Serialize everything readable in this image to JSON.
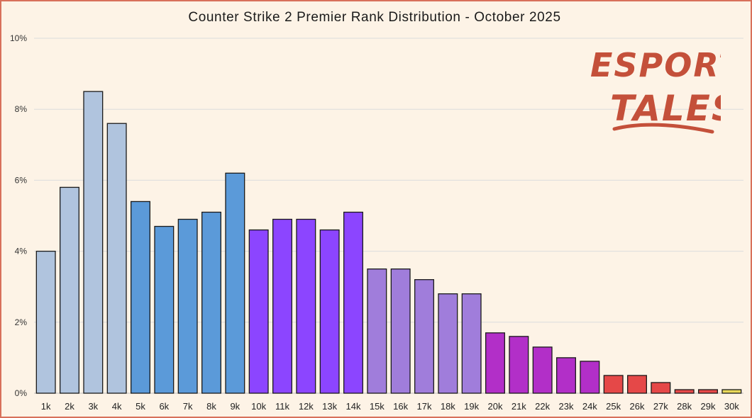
{
  "logo": {
    "line1": "ESPORTS",
    "line2": "TALES"
  },
  "chart_data": {
    "type": "bar",
    "title": "Counter Strike 2 Premier Rank Distribution - October 2025",
    "xlabel": "",
    "ylabel": "",
    "ylim": [
      0,
      10
    ],
    "y_ticks": [
      "0%",
      "2%",
      "4%",
      "6%",
      "8%",
      "10%"
    ],
    "y_tick_values": [
      0,
      2,
      4,
      6,
      8,
      10
    ],
    "grid": true,
    "categories": [
      "1k",
      "2k",
      "3k",
      "4k",
      "5k",
      "6k",
      "7k",
      "8k",
      "9k",
      "10k",
      "11k",
      "12k",
      "13k",
      "14k",
      "15k",
      "16k",
      "17k",
      "18k",
      "19k",
      "20k",
      "21k",
      "22k",
      "23k",
      "24k",
      "25k",
      "26k",
      "27k",
      "28k",
      "29k",
      "30k"
    ],
    "values": [
      4.0,
      5.8,
      8.5,
      7.6,
      5.4,
      4.7,
      4.9,
      5.1,
      6.2,
      4.6,
      4.9,
      4.9,
      4.6,
      5.1,
      3.5,
      3.5,
      3.2,
      2.8,
      2.8,
      1.7,
      1.6,
      1.3,
      1.0,
      0.9,
      0.5,
      0.5,
      0.3,
      0.1,
      0.1,
      0.1
    ],
    "bar_colors": [
      "#b0c4de",
      "#b0c4de",
      "#b0c4de",
      "#b0c4de",
      "#5b9ad9",
      "#5b9ad9",
      "#5b9ad9",
      "#5b9ad9",
      "#5b9ad9",
      "#8c45ff",
      "#8c45ff",
      "#8c45ff",
      "#8c45ff",
      "#8c45ff",
      "#a07ddb",
      "#a07ddb",
      "#a07ddb",
      "#a07ddb",
      "#a07ddb",
      "#b22fc8",
      "#b22fc8",
      "#b22fc8",
      "#b22fc8",
      "#b22fc8",
      "#e54848",
      "#e54848",
      "#e54848",
      "#e54848",
      "#e54848",
      "#e8d85a"
    ]
  }
}
